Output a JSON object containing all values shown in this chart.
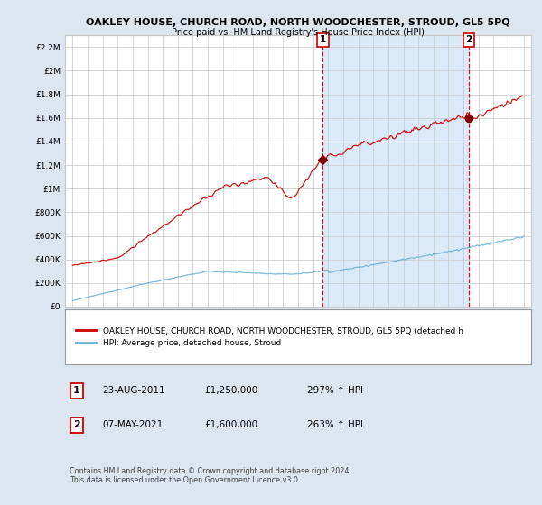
{
  "title": "OAKLEY HOUSE, CHURCH ROAD, NORTH WOODCHESTER, STROUD, GL5 5PQ",
  "subtitle": "Price paid vs. HM Land Registry's House Price Index (HPI)",
  "ylabel_ticks": [
    "£0",
    "£200K",
    "£400K",
    "£600K",
    "£800K",
    "£1M",
    "£1.2M",
    "£1.4M",
    "£1.6M",
    "£1.8M",
    "£2M",
    "£2.2M"
  ],
  "ylabel_values": [
    0,
    200000,
    400000,
    600000,
    800000,
    1000000,
    1200000,
    1400000,
    1600000,
    1800000,
    2000000,
    2200000
  ],
  "x_start_year": 1995,
  "x_end_year": 2025,
  "sale1_year": 2011.65,
  "sale1_price": 1250000,
  "sale2_year": 2021.35,
  "sale2_price": 1600000,
  "hpi_color": "#6baed6",
  "price_color": "#cc0000",
  "sale_marker_color": "#800000",
  "dashed_line_color": "#cc0000",
  "shade_color": "#dbeaf8",
  "background_color": "#dce6f1",
  "plot_bg_color": "#ffffff",
  "grid_color": "#c8c8c8",
  "legend_label_red": "OAKLEY HOUSE, CHURCH ROAD, NORTH WOODCHESTER, STROUD, GL5 5PQ (detached h",
  "legend_label_blue": "HPI: Average price, detached house, Stroud",
  "annotation1_label": "1",
  "annotation1_date": "23-AUG-2011",
  "annotation1_price": "£1,250,000",
  "annotation1_hpi": "297% ↑ HPI",
  "annotation2_label": "2",
  "annotation2_date": "07-MAY-2021",
  "annotation2_price": "£1,600,000",
  "annotation2_hpi": "263% ↑ HPI",
  "footer": "Contains HM Land Registry data © Crown copyright and database right 2024.\nThis data is licensed under the Open Government Licence v3.0."
}
